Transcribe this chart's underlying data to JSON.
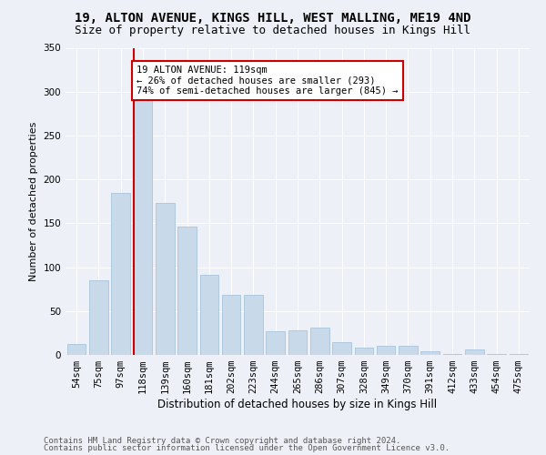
{
  "title1": "19, ALTON AVENUE, KINGS HILL, WEST MALLING, ME19 4ND",
  "title2": "Size of property relative to detached houses in Kings Hill",
  "xlabel": "Distribution of detached houses by size in Kings Hill",
  "ylabel": "Number of detached properties",
  "categories": [
    "54sqm",
    "75sqm",
    "97sqm",
    "118sqm",
    "139sqm",
    "160sqm",
    "181sqm",
    "202sqm",
    "223sqm",
    "244sqm",
    "265sqm",
    "286sqm",
    "307sqm",
    "328sqm",
    "349sqm",
    "370sqm",
    "391sqm",
    "412sqm",
    "433sqm",
    "454sqm",
    "475sqm"
  ],
  "values": [
    12,
    85,
    185,
    290,
    173,
    146,
    91,
    68,
    68,
    27,
    28,
    31,
    15,
    8,
    10,
    10,
    4,
    1,
    6,
    1,
    1
  ],
  "bar_color": "#c8daea",
  "bar_edge_color": "#aac4db",
  "vline_x_index": 3,
  "vline_color": "#cc0000",
  "annotation_text": "19 ALTON AVENUE: 119sqm\n← 26% of detached houses are smaller (293)\n74% of semi-detached houses are larger (845) →",
  "annotation_box_facecolor": "#ffffff",
  "annotation_box_edgecolor": "#cc0000",
  "annotation_fontsize": 7.5,
  "background_color": "#edf1f7",
  "plot_bg_color": "#edf1f7",
  "grid_color": "#ffffff",
  "footer1": "Contains HM Land Registry data © Crown copyright and database right 2024.",
  "footer2": "Contains public sector information licensed under the Open Government Licence v3.0.",
  "ylim_max": 340,
  "title1_fontsize": 10,
  "title2_fontsize": 9,
  "xlabel_fontsize": 8.5,
  "ylabel_fontsize": 8,
  "tick_fontsize": 7.5,
  "footer_fontsize": 6.5
}
